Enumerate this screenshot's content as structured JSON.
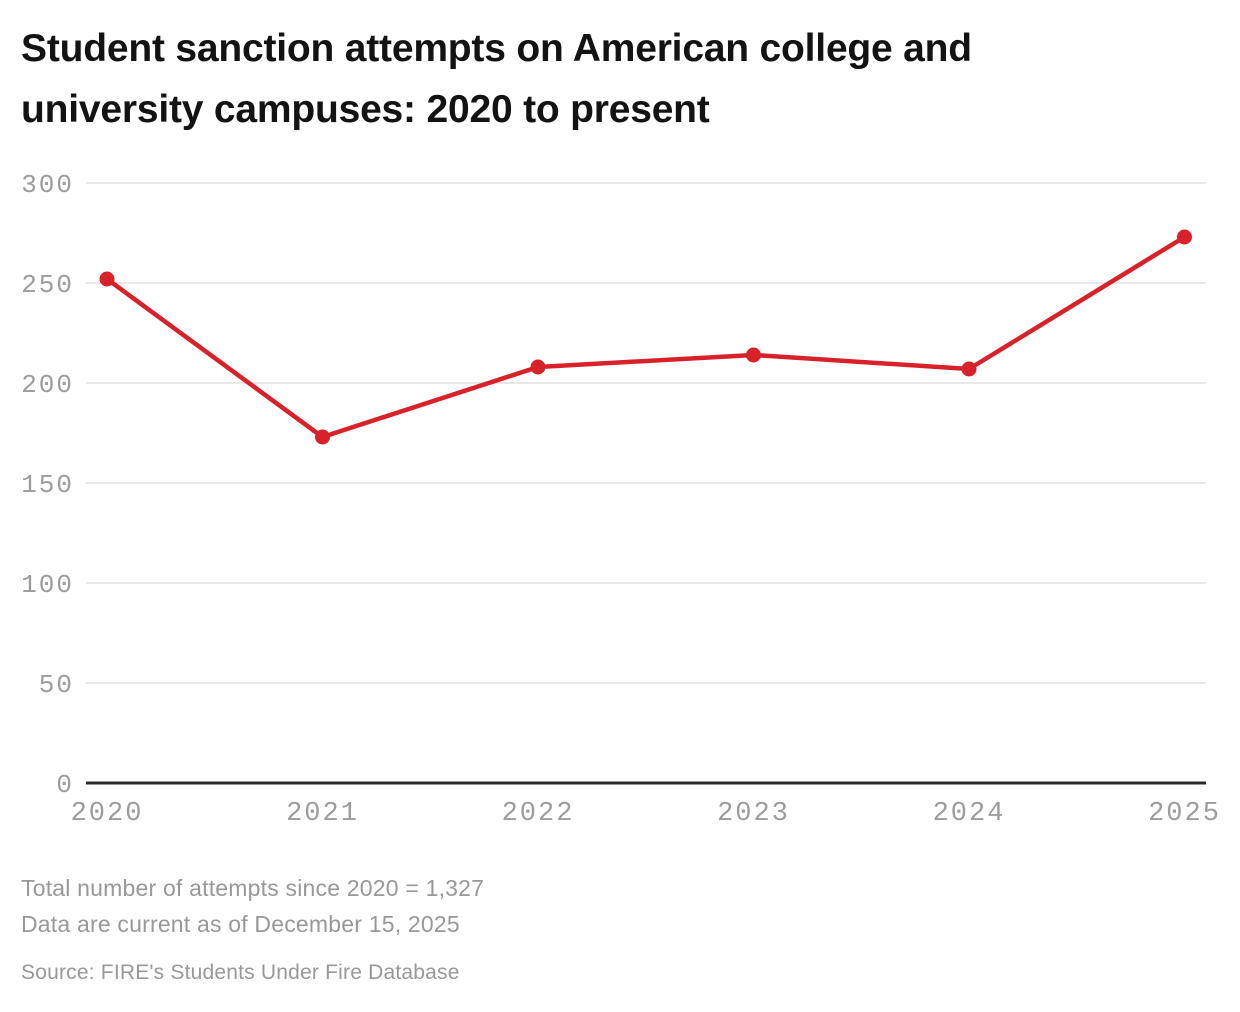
{
  "header": {
    "title_line1": "Student sanction attempts on American college and",
    "title_line2": "university campuses: 2020 to present"
  },
  "chart_data": {
    "type": "line",
    "title": "Student sanction attempts on American college and university campuses: 2020 to present",
    "x": [
      "2020",
      "2021",
      "2022",
      "2023",
      "2024",
      "2025"
    ],
    "series": [
      {
        "name": "Student sanction attempts",
        "values": [
          252,
          173,
          208,
          214,
          207,
          273
        ]
      }
    ],
    "y_ticks": [
      0,
      50,
      100,
      150,
      200,
      250,
      300
    ],
    "ylim": [
      0,
      300
    ],
    "xlabel": "",
    "ylabel": "",
    "grid": "horizontal",
    "legend": "none",
    "line_color": "#d7222a",
    "point_color": "#d7222a",
    "grid_color": "#e4e4e4",
    "axis_color": "#2b2b2b",
    "tick_label_color": "#9c9c9c"
  },
  "footer": {
    "total_note": "Total number of attempts since 2020 = 1,327",
    "current_note": "Data are current as of December 15, 2025",
    "source": "Source: FIRE's Students Under Fire Database"
  }
}
